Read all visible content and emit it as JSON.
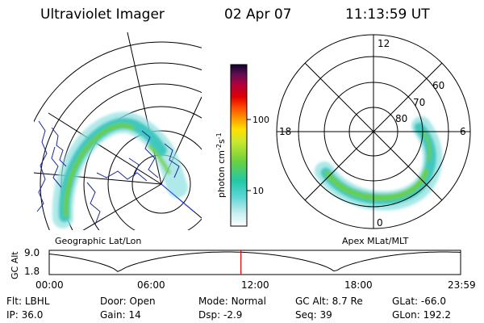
{
  "header": {
    "instrument": "Ultraviolet Imager",
    "date": "02 Apr 07",
    "time": "11:13:59 UT"
  },
  "colorbar": {
    "label_main": "photon cm",
    "label_exp": "-2",
    "label_main2": "s",
    "label_exp2": "-1",
    "ticks": [
      "100",
      "10"
    ]
  },
  "left_panel": {
    "caption": "Geographic Lat/Lon"
  },
  "right_panel": {
    "caption": "Apex MLat/MLT",
    "mlt_labels": {
      "top": "12",
      "left": "18",
      "right": "6",
      "bottom": "0"
    },
    "lat_labels": [
      "60",
      "70",
      "80"
    ]
  },
  "altitude_plot": {
    "ylabel": "GC Alt",
    "yticks": [
      "9.0",
      "1.8"
    ],
    "xticks": [
      "00:00",
      "06:00",
      "12:00",
      "18:00",
      "23:59"
    ],
    "current_time_fraction": 0.466
  },
  "info": {
    "row1": [
      {
        "label": "Flt:",
        "value": "LBHL"
      },
      {
        "label": "Door:",
        "value": "Open"
      },
      {
        "label": "Mode:",
        "value": "Normal"
      },
      {
        "label": "GC Alt:",
        "value": "8.7 Re"
      },
      {
        "label": "GLat:",
        "value": "-66.0"
      }
    ],
    "row2": [
      {
        "label": "IP:",
        "value": "36.0"
      },
      {
        "label": "Gain:",
        "value": "14"
      },
      {
        "label": "Dsp:",
        "value": "-2.9"
      },
      {
        "label": "Seq:",
        "value": "39"
      },
      {
        "label": "GLon:",
        "value": "192.2"
      }
    ]
  },
  "colors": {
    "marker": "#e00000",
    "aurora_outer": "#8ee0e0",
    "aurora_mid": "#3fc8c0",
    "aurora_core": "#6ecf3a",
    "coast": "#1a2a9a"
  }
}
